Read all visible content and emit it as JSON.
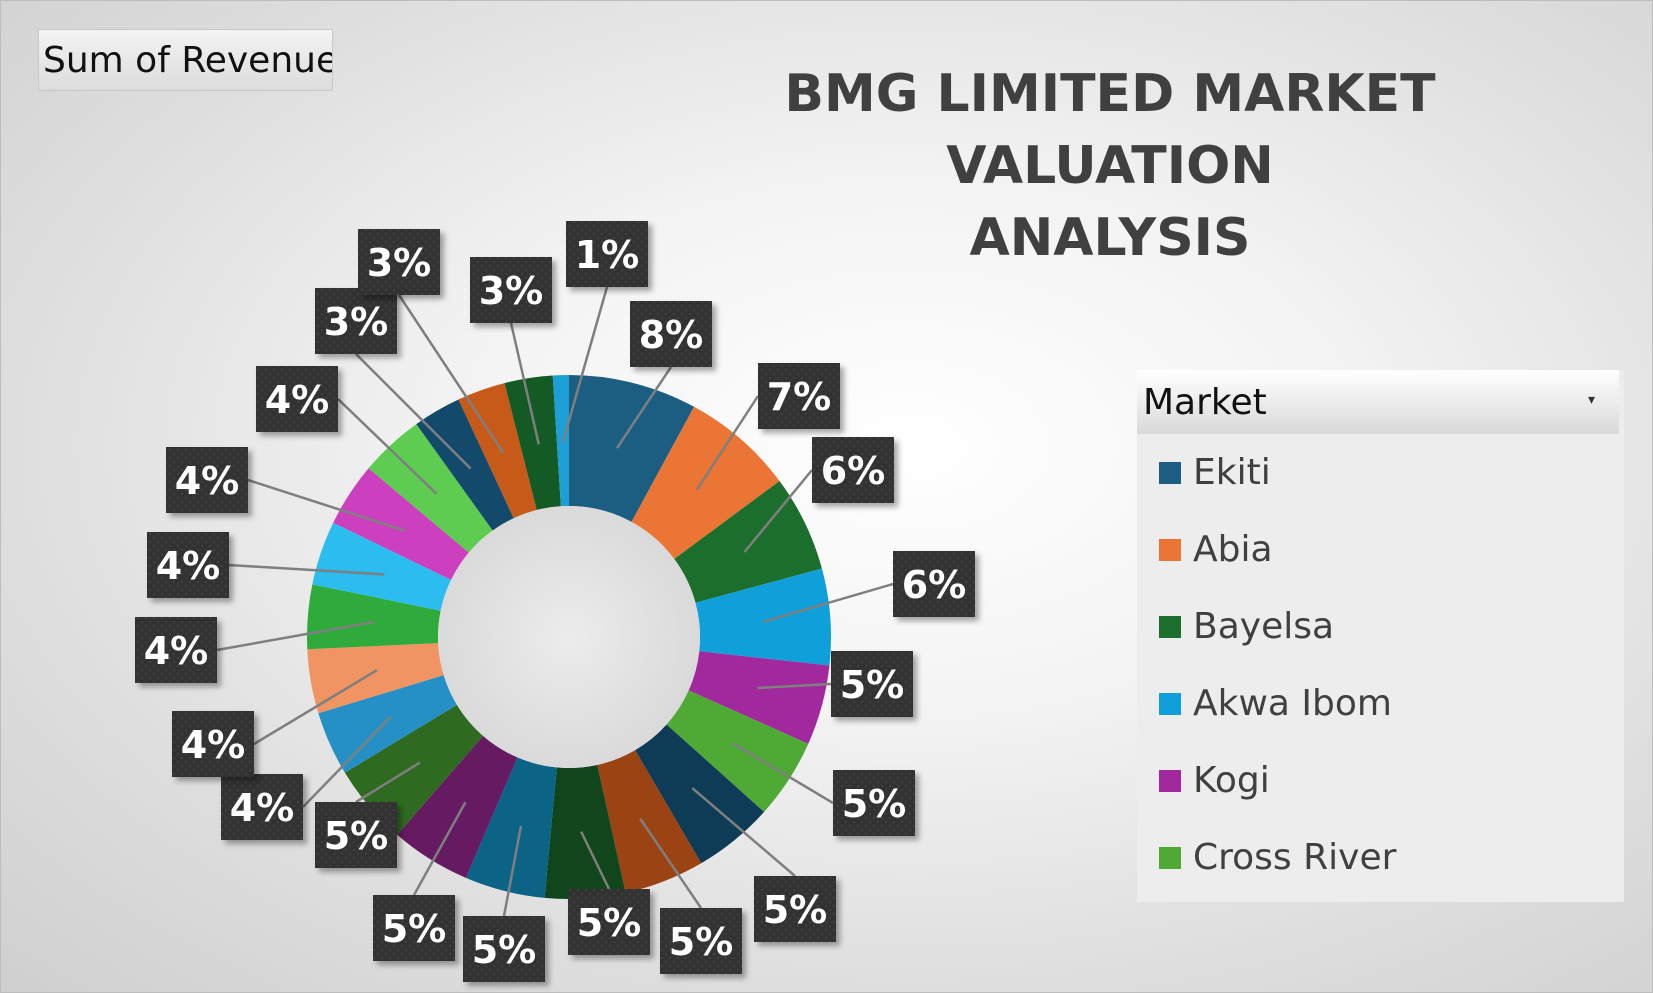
{
  "pivot_field_button": "Sum of Revenue",
  "chart_data": {
    "type": "pie",
    "style": "doughnut",
    "title": "BMG LIMITED MARKET VALUATION ANALYSIS",
    "title_lines": [
      "BMG LIMITED MARKET VALUATION",
      "ANALYSIS"
    ],
    "value_format": "percent",
    "slices": [
      {
        "label": "Ekiti",
        "value": 8,
        "display": "8%",
        "color": "#1b5e82"
      },
      {
        "label": "Abia",
        "value": 7,
        "display": "7%",
        "color": "#ea7534"
      },
      {
        "label": "Bayelsa",
        "value": 6,
        "display": "6%",
        "color": "#1b6e2c"
      },
      {
        "label": "Akwa Ibom",
        "value": 6,
        "display": "6%",
        "color": "#0f9fd9"
      },
      {
        "label": "Kogi",
        "value": 5,
        "display": "5%",
        "color": "#a2289d"
      },
      {
        "label": "Cross River",
        "value": 5,
        "display": "5%",
        "color": "#4eaa35"
      },
      {
        "label": "",
        "value": 5,
        "display": "5%",
        "color": "#0e3c57"
      },
      {
        "label": "",
        "value": 5,
        "display": "5%",
        "color": "#9c4314"
      },
      {
        "label": "",
        "value": 5,
        "display": "5%",
        "color": "#11461c"
      },
      {
        "label": "",
        "value": 5,
        "display": "5%",
        "color": "#0b6386"
      },
      {
        "label": "",
        "value": 5,
        "display": "5%",
        "color": "#651a62"
      },
      {
        "label": "",
        "value": 5,
        "display": "5%",
        "color": "#2e6a20"
      },
      {
        "label": "",
        "value": 4,
        "display": "4%",
        "color": "#2590c6"
      },
      {
        "label": "",
        "value": 4,
        "display": "4%",
        "color": "#ef9462"
      },
      {
        "label": "",
        "value": 4,
        "display": "4%",
        "color": "#2fab3b"
      },
      {
        "label": "",
        "value": 4,
        "display": "4%",
        "color": "#2bbcf0"
      },
      {
        "label": "",
        "value": 4,
        "display": "4%",
        "color": "#cc3fbf"
      },
      {
        "label": "",
        "value": 4,
        "display": "4%",
        "color": "#5dcc50"
      },
      {
        "label": "",
        "value": 3,
        "display": "3%",
        "color": "#134a6b"
      },
      {
        "label": "",
        "value": 3,
        "display": "3%",
        "color": "#c75a18"
      },
      {
        "label": "",
        "value": 3,
        "display": "3%",
        "color": "#145a24"
      },
      {
        "label": "",
        "value": 1,
        "display": "1%",
        "color": "#1b9fd6"
      }
    ]
  },
  "legend": {
    "header": "Market",
    "dropdown_icon": "dropdown-arrow-icon",
    "items": [
      {
        "label": "Ekiti",
        "color": "#1b5e82"
      },
      {
        "label": "Abia",
        "color": "#ea7534"
      },
      {
        "label": "Bayelsa",
        "color": "#1b6e2c"
      },
      {
        "label": "Akwa Ibom",
        "color": "#0f9fd9"
      },
      {
        "label": "Kogi",
        "color": "#a2289d"
      },
      {
        "label": "Cross River",
        "color": "#4eaa35"
      }
    ]
  }
}
